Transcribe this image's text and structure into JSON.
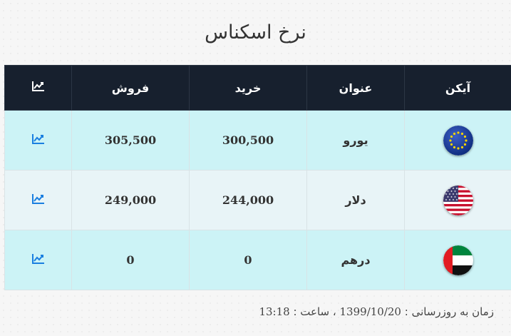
{
  "title": "نرخ اسکناس",
  "table": {
    "headers": {
      "icon": "آیکن",
      "name": "عنوان",
      "buy": "خرید",
      "sell": "فروش"
    },
    "rows": [
      {
        "flag": "eu-flag-icon",
        "name": "یورو",
        "buy": "300,500",
        "sell": "305,500"
      },
      {
        "flag": "us-flag-icon",
        "name": "دلار",
        "buy": "244,000",
        "sell": "249,000"
      },
      {
        "flag": "uae-flag-icon",
        "name": "درهم",
        "buy": "0",
        "sell": "0"
      }
    ]
  },
  "footer": {
    "label": "زمان به روزرسانی :",
    "date": "1399/10/20",
    "sep": "، ساعت :",
    "time": "13:18"
  },
  "colors": {
    "header_bg": "#17202e",
    "row_alt": "#ccf3f6",
    "row_plain": "#e8f4f7",
    "chart_icon": "#1a7fe0"
  }
}
